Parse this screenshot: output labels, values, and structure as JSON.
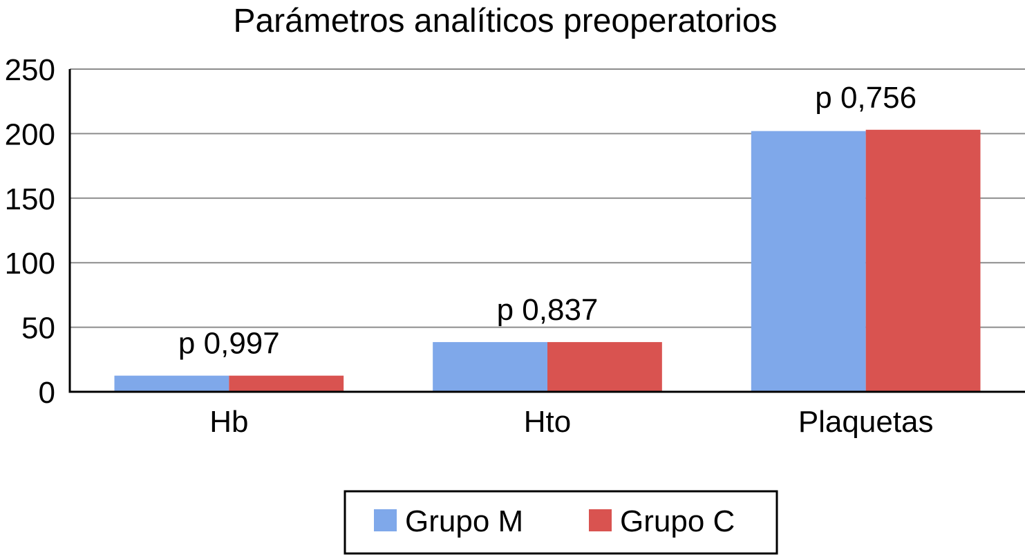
{
  "chart_data": {
    "type": "bar",
    "title": "Parámetros analíticos preoperatorios",
    "xlabel": "",
    "ylabel": "",
    "ylim": [
      0,
      250
    ],
    "yticks": [
      0,
      50,
      100,
      150,
      200,
      250
    ],
    "grid": true,
    "legend_position": "bottom",
    "categories": [
      "Hb",
      "Hto",
      "Plaquetas"
    ],
    "series": [
      {
        "name": "Grupo M",
        "color": "#7FA8EA",
        "values": [
          12.5,
          38.5,
          202
        ]
      },
      {
        "name": "Grupo C",
        "color": "#D95350",
        "values": [
          12.5,
          38.5,
          203
        ]
      }
    ],
    "annotations": [
      "p 0,997",
      "p 0,837",
      "p 0,756"
    ]
  }
}
